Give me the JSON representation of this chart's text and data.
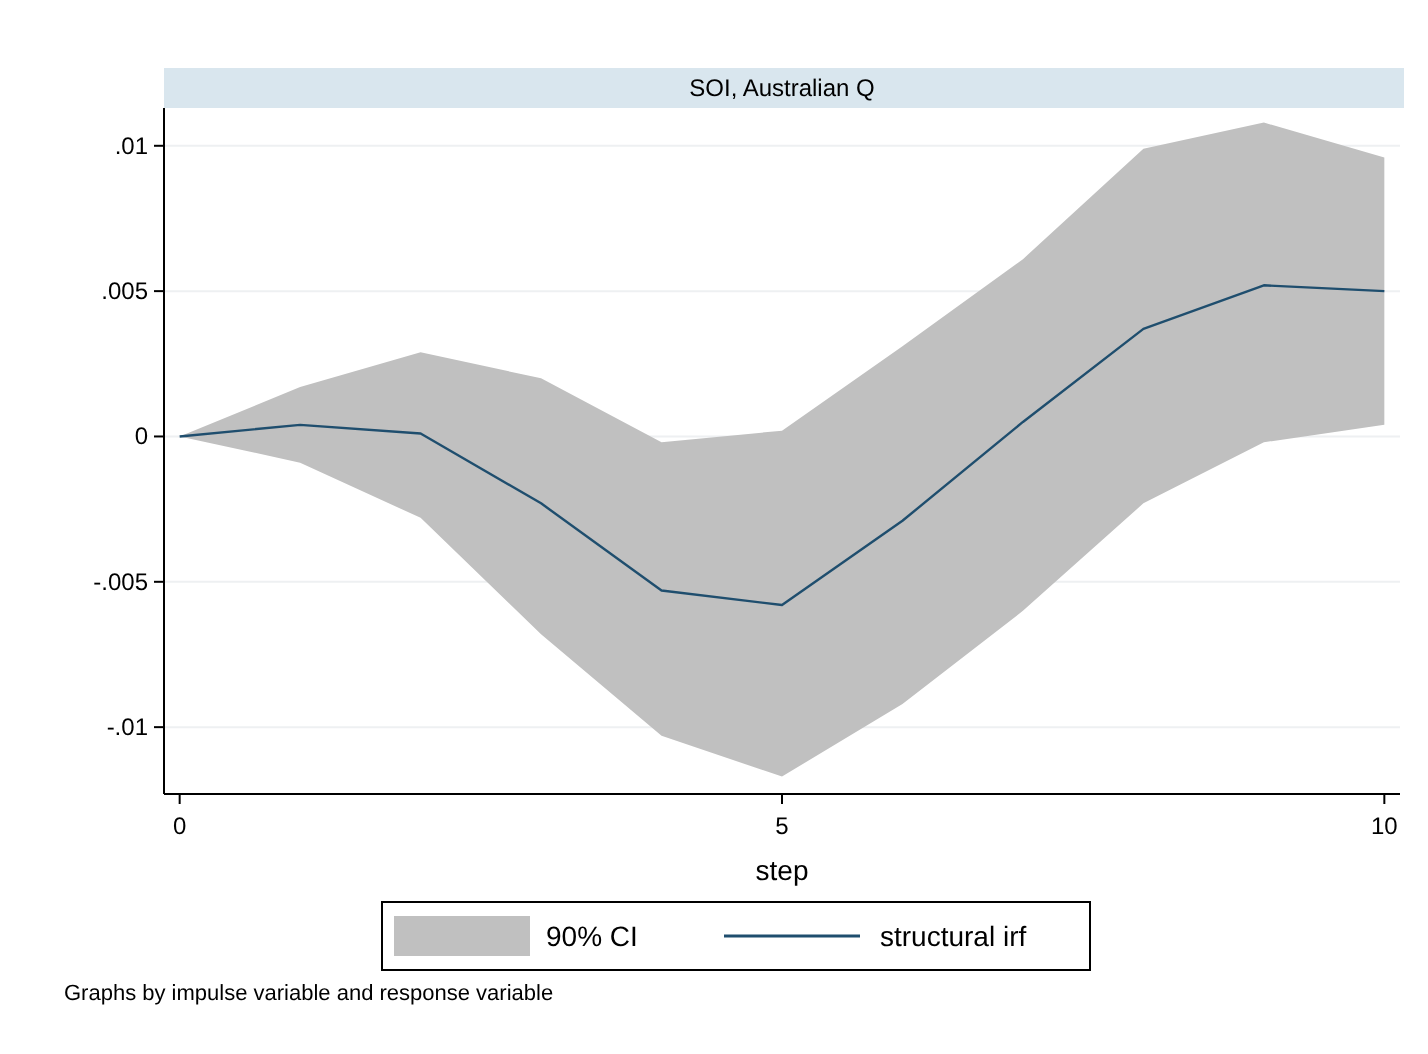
{
  "chart_data": {
    "type": "line",
    "title": "SOI, Australian Q",
    "xlabel": "step",
    "x": [
      0,
      1,
      2,
      3,
      4,
      5,
      6,
      7,
      8,
      9,
      10
    ],
    "series": [
      {
        "name": "structural irf",
        "color": "#1f4e6e",
        "values": [
          0,
          0.0004,
          0.0001,
          -0.0023,
          -0.0053,
          -0.0058,
          -0.0029,
          0.0005,
          0.0037,
          0.0052,
          0.005
        ],
        "lower": [
          0,
          -0.0009,
          -0.0028,
          -0.0068,
          -0.0103,
          -0.0117,
          -0.0092,
          -0.006,
          -0.0023,
          -0.0002,
          0.0004
        ],
        "upper": [
          0,
          0.0017,
          0.0029,
          0.002,
          -0.0002,
          0.0002,
          0.0031,
          0.0061,
          0.0099,
          0.0108,
          0.0096
        ]
      }
    ],
    "xlim": [
      -0.13,
      10.13
    ],
    "ylim": [
      -0.0123,
      0.0113
    ],
    "xticks": [
      0,
      5,
      10
    ],
    "yticks": [
      {
        "value": -0.01,
        "label": "-.01"
      },
      {
        "value": -0.005,
        "label": "-.005"
      },
      0,
      {
        "value": 0.005,
        "label": ".005"
      },
      {
        "value": 0.01,
        "label": ".01"
      }
    ],
    "grid": "y",
    "legend": "bottom",
    "annotations": [
      "90% CI",
      "Graphs by impulse variable and response variable"
    ]
  }
}
